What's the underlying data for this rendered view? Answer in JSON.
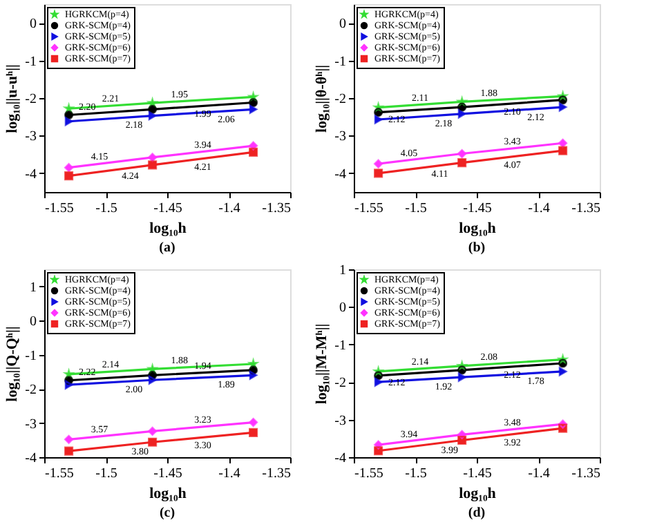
{
  "chart_data": [
    {
      "type": "line",
      "title": "(a)",
      "xlabel": "log₁₀h",
      "ylabel": "log₁₀||u-uʰ||",
      "x": [
        -1.53,
        -1.462,
        -1.38
      ],
      "xlim": [
        -1.55,
        -1.35
      ],
      "xticks": [
        -1.55,
        -1.5,
        -1.45,
        -1.4,
        -1.35
      ],
      "ylim": [
        -4.5,
        0.5
      ],
      "yticks": [
        -4,
        -3,
        -2,
        -1,
        0
      ],
      "grid": false,
      "legend": "top left",
      "series": [
        {
          "name": "HGRKCM(p=4)",
          "color": "#33dd33",
          "marker": "star",
          "values": [
            -2.28,
            -2.13,
            -1.97
          ]
        },
        {
          "name": "GRK-SCM(p=4)",
          "color": "#000000",
          "marker": "circle",
          "values": [
            -2.45,
            -2.3,
            -2.12
          ]
        },
        {
          "name": "GRK-SCM(p=5)",
          "color": "#1010e0",
          "marker": "triangle",
          "values": [
            -2.62,
            -2.47,
            -2.3
          ]
        },
        {
          "name": "GRK-SCM(p=6)",
          "color": "#ff33ff",
          "marker": "diamond",
          "values": [
            -3.85,
            -3.58,
            -3.27
          ]
        },
        {
          "name": "GRK-SCM(p=7)",
          "color": "#ee2222",
          "marker": "square",
          "values": [
            -4.07,
            -3.78,
            -3.44
          ]
        }
      ],
      "annotations": [
        {
          "text": "2.21",
          "x": -1.496,
          "y": -2.205
        },
        {
          "text": "2.20",
          "x": -1.515,
          "y": -2.417
        },
        {
          "text": "2.18",
          "x": -1.477,
          "y": -2.503
        },
        {
          "text": "1.95",
          "x": -1.44,
          "y": -2.087
        },
        {
          "text": "1.99",
          "x": -1.421,
          "y": -2.21
        },
        {
          "text": "2.06",
          "x": -1.402,
          "y": -2.346
        },
        {
          "text": "4.15",
          "x": -1.505,
          "y": -3.751
        },
        {
          "text": "4.24",
          "x": -1.48,
          "y": -3.857
        },
        {
          "text": "3.94",
          "x": -1.421,
          "y": -3.425
        },
        {
          "text": "4.21",
          "x": -1.421,
          "y": -3.61
        }
      ]
    },
    {
      "type": "line",
      "title": "(b)",
      "xlabel": "log₁₀h",
      "ylabel": "log₁₀||θ-θʰ||",
      "x": [
        -1.53,
        -1.462,
        -1.38
      ],
      "xlim": [
        -1.55,
        -1.35
      ],
      "xticks": [
        -1.55,
        -1.5,
        -1.45,
        -1.4,
        -1.35
      ],
      "ylim": [
        -4.5,
        0.5
      ],
      "yticks": [
        -4,
        -3,
        -2,
        -1,
        0
      ],
      "grid": false,
      "legend": "top left",
      "series": [
        {
          "name": "HGRKCM(p=4)",
          "color": "#33dd33",
          "marker": "star",
          "values": [
            -2.25,
            -2.1,
            -1.95
          ]
        },
        {
          "name": "GRK-SCM(p=4)",
          "color": "#000000",
          "marker": "circle",
          "values": [
            -2.38,
            -2.24,
            -2.05
          ]
        },
        {
          "name": "GRK-SCM(p=5)",
          "color": "#1010e0",
          "marker": "triangle",
          "values": [
            -2.57,
            -2.42,
            -2.24
          ]
        },
        {
          "name": "GRK-SCM(p=6)",
          "color": "#ff33ff",
          "marker": "diamond",
          "values": [
            -3.75,
            -3.48,
            -3.2
          ]
        },
        {
          "name": "GRK-SCM(p=7)",
          "color": "#ee2222",
          "marker": "square",
          "values": [
            -4.0,
            -3.72,
            -3.4
          ]
        }
      ],
      "annotations": [
        {
          "text": "2.11",
          "x": -1.496,
          "y": -2.175
        },
        {
          "text": "2.12",
          "x": -1.515,
          "y": -2.349
        },
        {
          "text": "2.18",
          "x": -1.477,
          "y": -2.453
        },
        {
          "text": "1.88",
          "x": -1.44,
          "y": -2.06
        },
        {
          "text": "2.10",
          "x": -1.421,
          "y": -2.145
        },
        {
          "text": "2.12",
          "x": -1.402,
          "y": -2.288
        },
        {
          "text": "4.05",
          "x": -1.505,
          "y": -3.651
        },
        {
          "text": "4.11",
          "x": -1.48,
          "y": -3.794
        },
        {
          "text": "3.43",
          "x": -1.421,
          "y": -3.34
        },
        {
          "text": "4.07",
          "x": -1.421,
          "y": -3.56
        }
      ]
    },
    {
      "type": "line",
      "title": "(c)",
      "xlabel": "log₁₀h",
      "ylabel": "log₁₀||Q-Qʰ||",
      "x": [
        -1.53,
        -1.462,
        -1.38
      ],
      "xlim": [
        -1.55,
        -1.35
      ],
      "xticks": [
        -1.55,
        -1.5,
        -1.45,
        -1.4,
        -1.35
      ],
      "ylim": [
        -4,
        1.5
      ],
      "yticks": [
        -4,
        -3,
        -2,
        -1,
        0,
        1
      ],
      "grid": false,
      "legend": "top left",
      "series": [
        {
          "name": "HGRKCM(p=4)",
          "color": "#33dd33",
          "marker": "star",
          "values": [
            -1.57,
            -1.42,
            -1.27
          ]
        },
        {
          "name": "GRK-SCM(p=4)",
          "color": "#000000",
          "marker": "circle",
          "values": [
            -1.75,
            -1.6,
            -1.45
          ]
        },
        {
          "name": "GRK-SCM(p=5)",
          "color": "#1010e0",
          "marker": "triangle",
          "values": [
            -1.88,
            -1.74,
            -1.6
          ]
        },
        {
          "name": "GRK-SCM(p=6)",
          "color": "#ff33ff",
          "marker": "diamond",
          "values": [
            -3.48,
            -3.24,
            -2.98
          ]
        },
        {
          "name": "GRK-SCM(p=7)",
          "color": "#ee2222",
          "marker": "square",
          "values": [
            -3.82,
            -3.56,
            -3.28
          ]
        }
      ],
      "annotations": [
        {
          "text": "2.14",
          "x": -1.496,
          "y": -1.495
        },
        {
          "text": "2.22",
          "x": -1.515,
          "y": -1.717
        },
        {
          "text": "2.00",
          "x": -1.477,
          "y": -1.771
        },
        {
          "text": "1.88",
          "x": -1.44,
          "y": -1.38
        },
        {
          "text": "1.94",
          "x": -1.421,
          "y": -1.525
        },
        {
          "text": "1.89",
          "x": -1.402,
          "y": -1.638
        },
        {
          "text": "3.57",
          "x": -1.505,
          "y": -3.392
        },
        {
          "text": "3.80",
          "x": -1.472,
          "y": -3.598
        },
        {
          "text": "3.23",
          "x": -1.421,
          "y": -3.11
        },
        {
          "text": "3.30",
          "x": -1.421,
          "y": -3.42
        }
      ]
    },
    {
      "type": "line",
      "title": "(d)",
      "xlabel": "log₁₀h",
      "ylabel": "log₁₀||M-Mʰ||",
      "x": [
        -1.53,
        -1.462,
        -1.38
      ],
      "xlim": [
        -1.55,
        -1.35
      ],
      "xticks": [
        -1.55,
        -1.5,
        -1.45,
        -1.4,
        -1.35
      ],
      "ylim": [
        -4,
        1
      ],
      "yticks": [
        -4,
        -3,
        -2,
        -1,
        0,
        1
      ],
      "grid": false,
      "legend": "top left",
      "series": [
        {
          "name": "HGRKCM(p=4)",
          "color": "#33dd33",
          "marker": "star",
          "values": [
            -1.72,
            -1.57,
            -1.4
          ]
        },
        {
          "name": "GRK-SCM(p=4)",
          "color": "#000000",
          "marker": "circle",
          "values": [
            -1.83,
            -1.68,
            -1.5
          ]
        },
        {
          "name": "GRK-SCM(p=5)",
          "color": "#1010e0",
          "marker": "triangle",
          "values": [
            -2.0,
            -1.87,
            -1.72
          ]
        },
        {
          "name": "GRK-SCM(p=6)",
          "color": "#ff33ff",
          "marker": "diamond",
          "values": [
            -3.67,
            -3.4,
            -3.12
          ]
        },
        {
          "name": "GRK-SCM(p=7)",
          "color": "#ee2222",
          "marker": "square",
          "values": [
            -3.83,
            -3.55,
            -3.23
          ]
        }
      ],
      "annotations": [
        {
          "text": "2.14",
          "x": -1.496,
          "y": -1.645
        },
        {
          "text": "2.12",
          "x": -1.515,
          "y": -1.797
        },
        {
          "text": "1.92",
          "x": -1.477,
          "y": -1.899
        },
        {
          "text": "2.08",
          "x": -1.44,
          "y": -1.524
        },
        {
          "text": "2.12",
          "x": -1.421,
          "y": -1.59
        },
        {
          "text": "1.78",
          "x": -1.402,
          "y": -1.76
        },
        {
          "text": "3.94",
          "x": -1.505,
          "y": -3.571
        },
        {
          "text": "3.99",
          "x": -1.472,
          "y": -3.591
        },
        {
          "text": "3.48",
          "x": -1.421,
          "y": -3.26
        },
        {
          "text": "3.92",
          "x": -1.421,
          "y": -3.39
        }
      ]
    }
  ]
}
